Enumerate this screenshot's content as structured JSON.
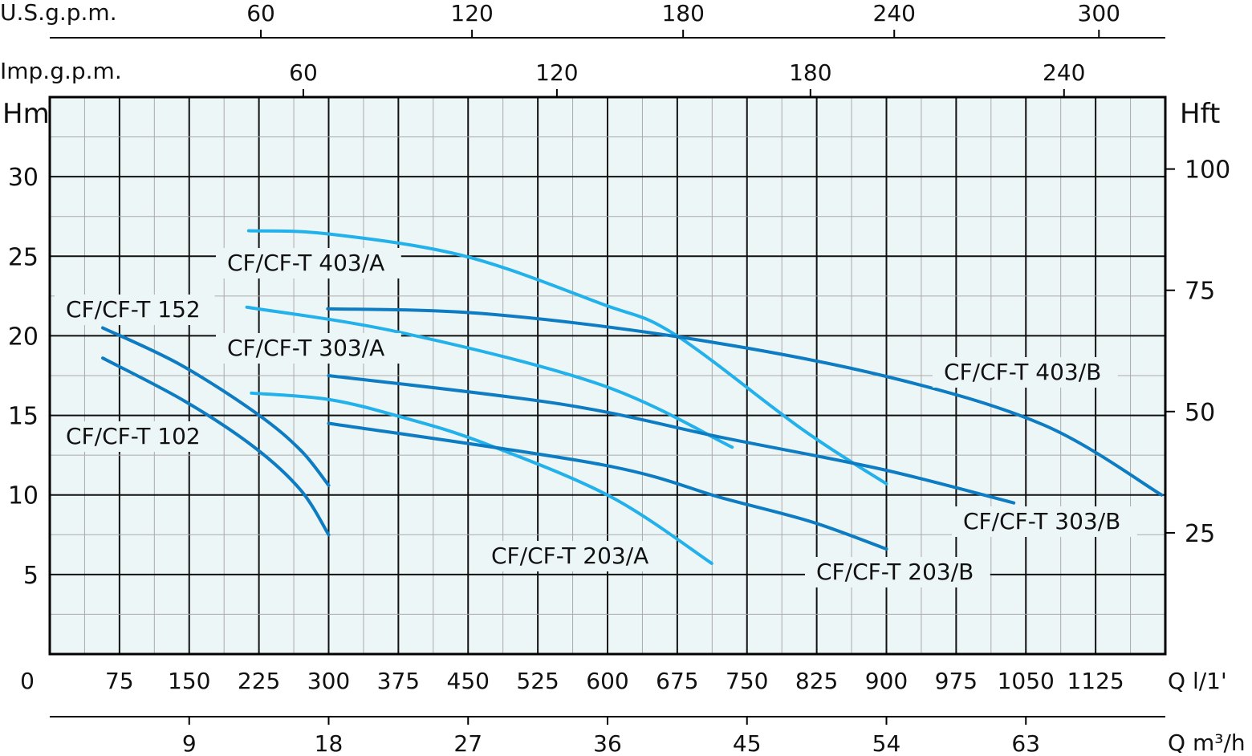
{
  "chart_data": {
    "type": "line",
    "title": "",
    "xlabel": "Q l/1'",
    "ylabel": "Hm",
    "xlim": [
      0,
      1200
    ],
    "ylim": [
      0,
      35
    ],
    "grid": true,
    "x_ticks": [
      0,
      75,
      150,
      225,
      300,
      375,
      450,
      525,
      600,
      675,
      750,
      825,
      900,
      975,
      1050,
      1125
    ],
    "y_ticks": [
      5,
      10,
      15,
      20,
      25,
      30
    ],
    "secondary_axes": {
      "us_gpm": {
        "label": "U.S.g.p.m.",
        "ticks": [
          60,
          120,
          180,
          240,
          300
        ],
        "position": "top"
      },
      "imp_gpm": {
        "label": "Imp.g.p.m.",
        "ticks": [
          60,
          120,
          180,
          240
        ],
        "position": "top"
      },
      "m3h": {
        "label": "Q m³/h",
        "ticks": [
          9,
          18,
          27,
          36,
          45,
          54,
          63
        ],
        "position": "bottom"
      },
      "hft": {
        "label": "Hft",
        "ticks": [
          25,
          50,
          75,
          100
        ],
        "position": "right"
      }
    },
    "colors": {
      "series_b": "#0d7cc2",
      "series_a": "#22b1ea",
      "plot_bg": "#edf6f7"
    },
    "series": [
      {
        "name": "CF/CF-T 152",
        "color": "#0d7cc2",
        "x": [
          57,
          140,
          223,
          270,
          300
        ],
        "y": [
          20.5,
          18.2,
          15.1,
          12.8,
          10.6
        ]
      },
      {
        "name": "CF/CF-T 102",
        "color": "#0d7cc2",
        "x": [
          57,
          145,
          220,
          270,
          300
        ],
        "y": [
          18.6,
          15.9,
          13.0,
          10.3,
          7.5
        ]
      },
      {
        "name": "CF/CF-T 403/A",
        "color": "#22b1ea",
        "x": [
          214,
          300,
          447,
          594,
          672,
          810,
          900
        ],
        "y": [
          26.6,
          26.4,
          25.0,
          22.0,
          20.1,
          14.1,
          10.7
        ]
      },
      {
        "name": "CF/CF-T 303/A",
        "color": "#22b1ea",
        "x": [
          212,
          378,
          594,
          734
        ],
        "y": [
          21.8,
          20.2,
          16.9,
          13.0
        ]
      },
      {
        "name": "CF/CF-T 203/A",
        "color": "#22b1ea",
        "x": [
          217,
          300,
          378,
          465,
          603,
          712
        ],
        "y": [
          16.4,
          16.0,
          14.9,
          13.3,
          9.9,
          5.7
        ]
      },
      {
        "name": "CF/CF-T 403/B",
        "color": "#0d7cc2",
        "x": [
          299,
          465,
          680,
          896,
          1069,
          1196
        ],
        "y": [
          21.7,
          21.4,
          19.9,
          17.5,
          14.4,
          10.0
        ]
      },
      {
        "name": "CF/CF-T 303/B",
        "color": "#0d7cc2",
        "x": [
          300,
          551,
          724,
          896,
          1037
        ],
        "y": [
          17.5,
          15.7,
          13.6,
          11.6,
          9.5
        ]
      },
      {
        "name": "CF/CF-T 203/B",
        "color": "#0d7cc2",
        "x": [
          300,
          594,
          724,
          820,
          900
        ],
        "y": [
          14.5,
          11.9,
          9.8,
          8.3,
          6.6
        ]
      }
    ]
  }
}
